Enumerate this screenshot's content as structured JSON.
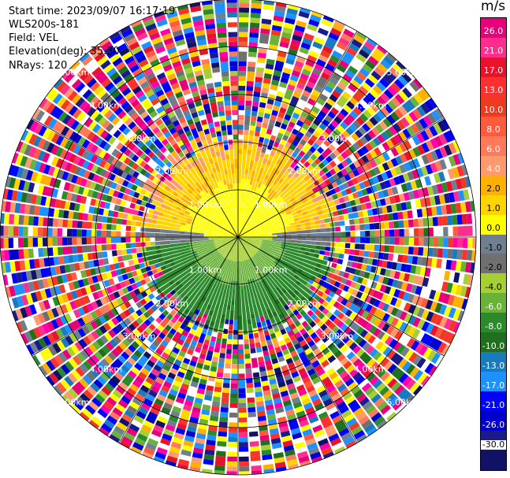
{
  "header": {
    "start_time": "Start time: 2023/09/07 16:17:19",
    "instrument": "WLS200s-181",
    "field": "Field: VEL",
    "elevation": "Elevation(deg): 35.30",
    "nrays": "NRays: 120"
  },
  "colorbar": {
    "unit": "m/s",
    "ticks": [
      "26.0",
      "21.0",
      "17.0",
      "13.0",
      "10.0",
      "8.0",
      "6.0",
      "4.0",
      "2.0",
      "1.0",
      "0.0",
      "-1.0",
      "-2.0",
      "-4.0",
      "-6.0",
      "-8.0",
      "-10.0",
      "-13.0",
      "-17.0",
      "-21.0",
      "-26.0",
      "-30.0"
    ],
    "colors": [
      "#e8007a",
      "#ff2d8f",
      "#e8122b",
      "#ff3030",
      "#ee3a20",
      "#ff5a3c",
      "#ff7a5c",
      "#ff9a6e",
      "#ffb000",
      "#ffd400",
      "#ffff00",
      "#6f7f8f",
      "#707070",
      "#a6cf33",
      "#6ab23a",
      "#2b8a2b",
      "#1f6f1f",
      "#1a7ac0",
      "#1e90ff",
      "#0000ff",
      "#0000cc",
      "#1a1a8a",
      "#111166"
    ]
  },
  "range_rings": {
    "near": [
      "1.00km",
      "1.00km",
      "1.00km",
      "1.00km"
    ],
    "r2": [
      "2.00km",
      "2.00km",
      "2.00km",
      "2.00km"
    ],
    "r3": [
      "3.00km",
      "3.00km",
      "3.00km",
      "3.00km"
    ],
    "r4": [
      "4.00km",
      "4.00km",
      "4.00km",
      "4.00km"
    ],
    "r5": [
      "5.00km",
      "5.00km",
      "5.00km",
      "5.00km"
    ]
  }
}
